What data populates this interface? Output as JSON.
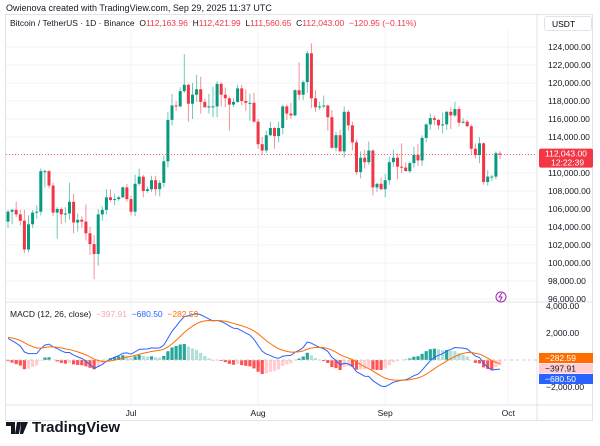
{
  "header": {
    "credit": "Owienova created with TradingView.com, Sep 29, 2025 11:37 UTC"
  },
  "legend": {
    "symbol": "Bitcoin / TetherUS · 1D · Binance",
    "o_label": "O",
    "o": "112,163.96",
    "h_label": "H",
    "h": "112,421.99",
    "l_label": "L",
    "l": "111,560.65",
    "c_label": "C",
    "c": "112,043.00",
    "change": "−120.95 (−0.11%)"
  },
  "currency_button": "USDT",
  "price_axis": {
    "ticks": [
      "124,000.00",
      "122,000.00",
      "120,000.00",
      "118,000.00",
      "116,000.00",
      "114,000.00",
      "110,000.00",
      "108,000.00",
      "106,000.00",
      "104,000.00",
      "102,000.00",
      "100,000.00",
      "98,000.00",
      "96,000.00"
    ],
    "last_price": "112,043.00",
    "countdown": "12:22:39"
  },
  "macd": {
    "title": "MACD (12, 26, close)",
    "histogram": "−397.91",
    "macd": "−680.50",
    "signal": "−282.59",
    "ticks": [
      "4,000.00",
      "2,000.00",
      "−2,000.00"
    ]
  },
  "time_axis": [
    "Jul",
    "Aug",
    "Sep",
    "Oct"
  ],
  "brand": "TradingView",
  "colors": {
    "up": "#089981",
    "down": "#f23645",
    "macd": "#2962ff",
    "signal": "#ff6d00"
  },
  "chart_data": {
    "type": "candlestick",
    "symbol": "Bitcoin / TetherUS",
    "interval": "1D",
    "exchange": "Binance",
    "ylim": [
      96000,
      124000
    ],
    "x_ticks": [
      "Jul",
      "Aug",
      "Sep",
      "Oct"
    ],
    "candles_ohlc": [
      [
        104600,
        105900,
        103900,
        105700
      ],
      [
        105700,
        106000,
        104300,
        105900
      ],
      [
        105900,
        106800,
        105100,
        105400
      ],
      [
        105400,
        105900,
        104200,
        104700
      ],
      [
        104700,
        105900,
        101100,
        101500
      ],
      [
        101500,
        105300,
        101200,
        104300
      ],
      [
        104300,
        105900,
        103900,
        105600
      ],
      [
        105600,
        106400,
        104900,
        105700
      ],
      [
        105700,
        110500,
        105300,
        110200
      ],
      [
        110200,
        110400,
        108400,
        110200
      ],
      [
        110200,
        110300,
        108300,
        108600
      ],
      [
        108600,
        108900,
        105200,
        105600
      ],
      [
        105600,
        106200,
        102700,
        106000
      ],
      [
        106000,
        106200,
        104300,
        105400
      ],
      [
        105400,
        106200,
        104500,
        105500
      ],
      [
        105500,
        108900,
        104800,
        106800
      ],
      [
        106800,
        107700,
        103300,
        104500
      ],
      [
        104500,
        105500,
        103500,
        104800
      ],
      [
        104800,
        105200,
        103900,
        104600
      ],
      [
        104600,
        106500,
        102500,
        103300
      ],
      [
        103300,
        104000,
        100900,
        102100
      ],
      [
        102100,
        103100,
        98200,
        101000
      ],
      [
        101000,
        106000,
        99700,
        105400
      ],
      [
        105400,
        106300,
        104700,
        105900
      ],
      [
        105900,
        108200,
        105400,
        107300
      ],
      [
        107300,
        108200,
        106800,
        107000
      ],
      [
        107000,
        107700,
        106400,
        107100
      ],
      [
        107100,
        107500,
        106900,
        107300
      ],
      [
        107300,
        108500,
        107200,
        108400
      ],
      [
        108400,
        108800,
        106800,
        107100
      ],
      [
        107100,
        107500,
        105300,
        105700
      ],
      [
        105700,
        109800,
        105200,
        108800
      ],
      [
        108800,
        110500,
        108600,
        109600
      ],
      [
        109600,
        109800,
        107300,
        108000
      ],
      [
        108000,
        108500,
        107800,
        108200
      ],
      [
        108200,
        109700,
        107900,
        109200
      ],
      [
        109200,
        109700,
        107500,
        108200
      ],
      [
        108200,
        109200,
        107400,
        108900
      ],
      [
        108900,
        111900,
        108400,
        111300
      ],
      [
        111300,
        116800,
        110600,
        115900
      ],
      [
        115900,
        118800,
        115300,
        117500
      ],
      [
        117500,
        118000,
        116900,
        117400
      ],
      [
        117400,
        119500,
        117300,
        119100
      ],
      [
        119100,
        123200,
        118900,
        119800
      ],
      [
        119800,
        119900,
        115700,
        117700
      ],
      [
        117700,
        120000,
        116000,
        118700
      ],
      [
        118700,
        120900,
        117900,
        119300
      ],
      [
        119300,
        120700,
        116600,
        117900
      ],
      [
        117900,
        118300,
        117300,
        117300
      ],
      [
        117300,
        118800,
        116600,
        117400
      ],
      [
        117400,
        119600,
        116200,
        117400
      ],
      [
        117400,
        120200,
        116200,
        119900
      ],
      [
        119900,
        120100,
        117400,
        118700
      ],
      [
        118700,
        119500,
        117300,
        118300
      ],
      [
        118300,
        118500,
        114700,
        117600
      ],
      [
        117600,
        118300,
        117300,
        117900
      ],
      [
        117900,
        119800,
        117800,
        119400
      ],
      [
        119400,
        119800,
        117500,
        118000
      ],
      [
        118000,
        119300,
        116900,
        117800
      ],
      [
        117800,
        118800,
        115800,
        117800
      ],
      [
        117800,
        118900,
        115600,
        115700
      ],
      [
        115700,
        116000,
        112700,
        113200
      ],
      [
        113200,
        114000,
        112000,
        112500
      ],
      [
        112500,
        114700,
        112200,
        114200
      ],
      [
        114200,
        115700,
        114100,
        115000
      ],
      [
        115000,
        115100,
        112700,
        114100
      ],
      [
        114100,
        115700,
        113400,
        115000
      ],
      [
        115000,
        117600,
        114300,
        117400
      ],
      [
        117400,
        117600,
        115900,
        116600
      ],
      [
        116600,
        117800,
        116000,
        116400
      ],
      [
        116400,
        119300,
        116300,
        119200
      ],
      [
        119200,
        122300,
        118100,
        118700
      ],
      [
        118700,
        120300,
        118100,
        120100
      ],
      [
        120100,
        123600,
        118900,
        123300
      ],
      [
        123300,
        124400,
        117200,
        118300
      ],
      [
        118300,
        119200,
        116800,
        117300
      ],
      [
        117300,
        117900,
        117000,
        117400
      ],
      [
        117400,
        118600,
        117200,
        117500
      ],
      [
        117500,
        117600,
        114700,
        116200
      ],
      [
        116200,
        117000,
        112700,
        112800
      ],
      [
        112800,
        114600,
        112400,
        114200
      ],
      [
        114200,
        114800,
        112400,
        112400
      ],
      [
        112400,
        117400,
        111700,
        116800
      ],
      [
        116800,
        117000,
        114700,
        115300
      ],
      [
        115300,
        115700,
        112500,
        113400
      ],
      [
        113400,
        113700,
        109800,
        110100
      ],
      [
        110100,
        112400,
        109400,
        111700
      ],
      [
        111700,
        112600,
        110500,
        111200
      ],
      [
        111200,
        113500,
        110900,
        112500
      ],
      [
        112500,
        112600,
        107500,
        108400
      ],
      [
        108400,
        108900,
        107900,
        108800
      ],
      [
        108800,
        109500,
        108100,
        108200
      ],
      [
        108200,
        109900,
        107300,
        109200
      ],
      [
        109200,
        111800,
        108700,
        111200
      ],
      [
        111200,
        112600,
        110700,
        111700
      ],
      [
        111700,
        112200,
        109300,
        110700
      ],
      [
        110700,
        113300,
        110000,
        110600
      ],
      [
        110600,
        111200,
        110200,
        110200
      ],
      [
        110200,
        111300,
        110000,
        111100
      ],
      [
        111100,
        112900,
        110600,
        112000
      ],
      [
        112000,
        113200,
        110800,
        111400
      ],
      [
        111400,
        114200,
        110800,
        113900
      ],
      [
        113900,
        115500,
        113400,
        115400
      ],
      [
        115400,
        116600,
        114800,
        116100
      ],
      [
        116100,
        116400,
        115300,
        115900
      ],
      [
        115900,
        116000,
        114800,
        115300
      ],
      [
        115300,
        116700,
        114400,
        115400
      ],
      [
        115400,
        116900,
        114800,
        116800
      ],
      [
        116800,
        117300,
        114900,
        116400
      ],
      [
        116400,
        117900,
        116200,
        117100
      ],
      [
        117100,
        117400,
        115200,
        115600
      ],
      [
        115600,
        116100,
        115500,
        115700
      ],
      [
        115700,
        115900,
        115100,
        115200
      ],
      [
        115200,
        115400,
        112000,
        112700
      ],
      [
        112700,
        113300,
        111600,
        112000
      ],
      [
        112000,
        114000,
        111100,
        113300
      ],
      [
        113300,
        113400,
        108700,
        109000
      ],
      [
        109000,
        110300,
        108600,
        109600
      ],
      [
        109600,
        109800,
        109100,
        109600
      ],
      [
        109600,
        112400,
        109300,
        112200
      ],
      [
        112163.96,
        112421.99,
        111560.65,
        112043.0
      ]
    ],
    "macd_ylim": [
      -3000,
      4000
    ],
    "last_values": {
      "histogram": -397.91,
      "macd": -680.5,
      "signal": -282.59
    }
  }
}
